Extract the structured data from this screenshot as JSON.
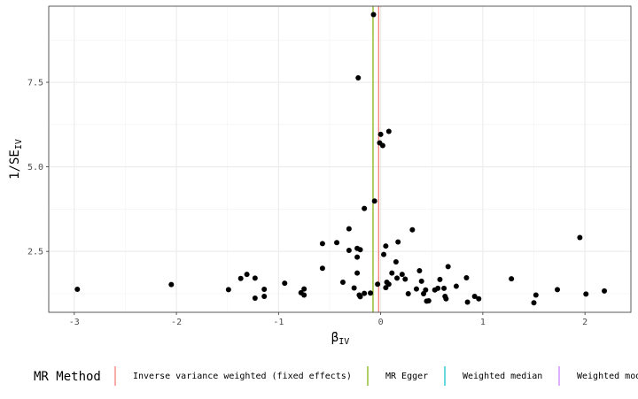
{
  "chart_data": {
    "type": "scatter",
    "xlabel": {
      "main": "β",
      "sub": "IV"
    },
    "ylabel": {
      "main": "1/SE",
      "sub": "IV"
    },
    "xlim": [
      -3.25,
      2.45
    ],
    "ylim": [
      0.7,
      9.75
    ],
    "x_ticks": [
      -3,
      -2,
      -1,
      0,
      1,
      2
    ],
    "x_tick_labels": [
      "-3",
      "-2",
      "-1",
      "0",
      "1",
      "2"
    ],
    "y_ticks": [
      2.5,
      5.0,
      7.5
    ],
    "y_tick_labels": [
      "2.5",
      "5.0",
      "7.5"
    ],
    "grid": true,
    "legend": {
      "position": "bottom",
      "title": "MR Method",
      "entries": [
        {
          "label": "Inverse variance weighted (fixed effects)",
          "color": "#F8766D"
        },
        {
          "label": "MR Egger",
          "color": "#7CAE00"
        },
        {
          "label": "Weighted median",
          "color": "#00BFC4"
        },
        {
          "label": "Weighted mode",
          "color": "#C77CFF"
        }
      ]
    },
    "reference_lines": [
      {
        "method": "Inverse variance weighted (fixed effects)",
        "x": -0.02,
        "color": "#F8766D"
      },
      {
        "method": "MR Egger",
        "x": -0.075,
        "color": "#7CAE00"
      }
    ],
    "point_color": "#000000",
    "points": [
      {
        "x": -2.97,
        "y": 1.38
      },
      {
        "x": -2.05,
        "y": 1.52
      },
      {
        "x": -1.49,
        "y": 1.37
      },
      {
        "x": -1.37,
        "y": 1.7
      },
      {
        "x": -1.31,
        "y": 1.82
      },
      {
        "x": -1.23,
        "y": 1.71
      },
      {
        "x": -1.23,
        "y": 1.12
      },
      {
        "x": -1.14,
        "y": 1.38
      },
      {
        "x": -1.14,
        "y": 1.17
      },
      {
        "x": -0.94,
        "y": 1.56
      },
      {
        "x": -0.78,
        "y": 1.28
      },
      {
        "x": -0.75,
        "y": 1.39
      },
      {
        "x": -0.75,
        "y": 1.21
      },
      {
        "x": -0.57,
        "y": 2.73
      },
      {
        "x": -0.57,
        "y": 2.0
      },
      {
        "x": -0.43,
        "y": 2.76
      },
      {
        "x": -0.37,
        "y": 1.59
      },
      {
        "x": -0.31,
        "y": 3.17
      },
      {
        "x": -0.31,
        "y": 2.53
      },
      {
        "x": -0.26,
        "y": 1.42
      },
      {
        "x": -0.23,
        "y": 2.59
      },
      {
        "x": -0.23,
        "y": 2.33
      },
      {
        "x": -0.23,
        "y": 1.86
      },
      {
        "x": -0.21,
        "y": 1.21
      },
      {
        "x": -0.2,
        "y": 2.55
      },
      {
        "x": -0.2,
        "y": 1.16
      },
      {
        "x": -0.16,
        "y": 3.77
      },
      {
        "x": -0.16,
        "y": 1.26
      },
      {
        "x": -0.1,
        "y": 1.27
      },
      {
        "x": -0.22,
        "y": 7.63
      },
      {
        "x": -0.07,
        "y": 9.5
      },
      {
        "x": -0.06,
        "y": 3.99
      },
      {
        "x": -0.03,
        "y": 1.53
      },
      {
        "x": -0.01,
        "y": 5.71
      },
      {
        "x": 0.0,
        "y": 5.96
      },
      {
        "x": 0.02,
        "y": 5.63
      },
      {
        "x": 0.03,
        "y": 2.41
      },
      {
        "x": 0.05,
        "y": 2.66
      },
      {
        "x": 0.05,
        "y": 1.43
      },
      {
        "x": 0.06,
        "y": 1.59
      },
      {
        "x": 0.08,
        "y": 6.05
      },
      {
        "x": 0.08,
        "y": 1.53
      },
      {
        "x": 0.11,
        "y": 1.86
      },
      {
        "x": 0.15,
        "y": 2.19
      },
      {
        "x": 0.16,
        "y": 1.71
      },
      {
        "x": 0.17,
        "y": 2.78
      },
      {
        "x": 0.21,
        "y": 1.82
      },
      {
        "x": 0.24,
        "y": 1.68
      },
      {
        "x": 0.27,
        "y": 1.25
      },
      {
        "x": 0.31,
        "y": 3.14
      },
      {
        "x": 0.35,
        "y": 1.39
      },
      {
        "x": 0.38,
        "y": 1.93
      },
      {
        "x": 0.4,
        "y": 1.62
      },
      {
        "x": 0.42,
        "y": 1.25
      },
      {
        "x": 0.44,
        "y": 1.36
      },
      {
        "x": 0.45,
        "y": 1.03
      },
      {
        "x": 0.47,
        "y": 1.04
      },
      {
        "x": 0.53,
        "y": 1.36
      },
      {
        "x": 0.56,
        "y": 1.41
      },
      {
        "x": 0.58,
        "y": 1.67
      },
      {
        "x": 0.62,
        "y": 1.41
      },
      {
        "x": 0.63,
        "y": 1.17
      },
      {
        "x": 0.64,
        "y": 1.1
      },
      {
        "x": 0.66,
        "y": 2.05
      },
      {
        "x": 0.74,
        "y": 1.47
      },
      {
        "x": 0.84,
        "y": 1.72
      },
      {
        "x": 0.85,
        "y": 1.0
      },
      {
        "x": 0.92,
        "y": 1.17
      },
      {
        "x": 0.96,
        "y": 1.1
      },
      {
        "x": 1.28,
        "y": 1.69
      },
      {
        "x": 1.5,
        "y": 0.98
      },
      {
        "x": 1.52,
        "y": 1.21
      },
      {
        "x": 1.73,
        "y": 1.37
      },
      {
        "x": 1.95,
        "y": 2.91
      },
      {
        "x": 2.01,
        "y": 1.24
      },
      {
        "x": 2.19,
        "y": 1.33
      }
    ]
  }
}
